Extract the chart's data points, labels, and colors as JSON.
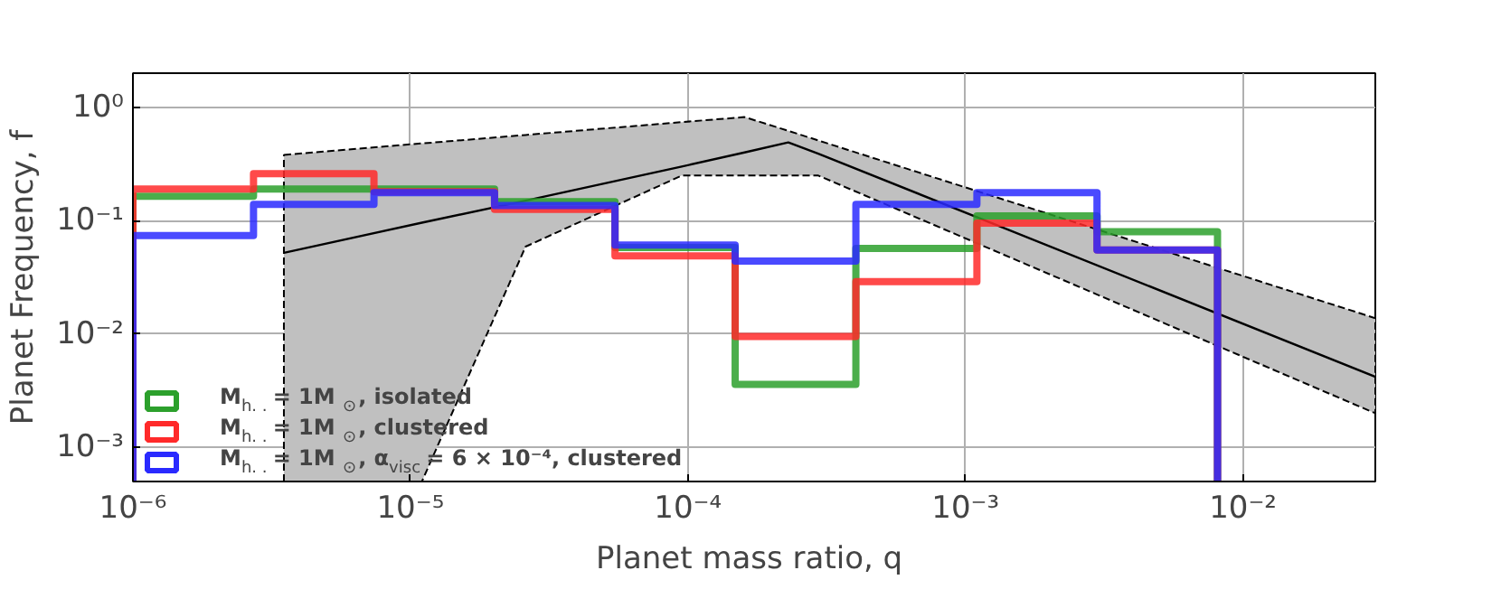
{
  "chart_data": {
    "type": "histogram",
    "xlabel": "Planet mass  ratio, q",
    "ylabel": "Planet Frequency, f",
    "log": "xy",
    "grid": true,
    "legend": "bottom left",
    "bins": [
      1e-06,
      2.72e-06,
      7.39e-06,
      2.01e-05,
      5.46e-05,
      0.000148,
      0.000403,
      0.0011,
      0.00298,
      0.0081
    ],
    "xlim": [
      1e-06,
      0.03
    ],
    "ylim": [
      0.0005,
      2
    ],
    "xticks": [
      {
        "value": 1e-06,
        "label": "10⁻⁶"
      },
      {
        "value": 1e-05,
        "label": "10⁻⁵"
      },
      {
        "value": 0.0001,
        "label": "10⁻⁴"
      },
      {
        "value": 0.001,
        "label": "10⁻³"
      },
      {
        "value": 0.01,
        "label": "10⁻²"
      }
    ],
    "yticks": [
      {
        "value": 0.001,
        "label": "10⁻³"
      },
      {
        "value": 0.01,
        "label": "10⁻²"
      },
      {
        "value": 0.1,
        "label": "10⁻¹"
      },
      {
        "value": 1,
        "label": "10⁰"
      }
    ],
    "series": [
      {
        "type": "line",
        "color": "#000000",
        "x": [
          3.5e-06,
          1.1e-05,
          2.6e-05,
          9.5e-05,
          0.00016,
          0.00023,
          0.000295,
          0.03
        ],
        "values": [
          0.052,
          0.096,
          0.15,
          0.3,
          0.4,
          0.49,
          0.39,
          0.0042
        ],
        "lower": [
          0.0005,
          0.0005,
          0.059,
          0.25,
          0.25,
          0.25,
          0.25,
          0.002
        ],
        "upper": [
          0.38,
          0.48,
          0.57,
          0.74,
          0.82,
          0.62,
          0.51,
          0.0138
        ]
      },
      {
        "name": "M$_{h. .}$ = 1M$_{⊙}$, isolated",
        "color": "#2ca02c",
        "values": [
          0.164,
          0.19,
          0.19,
          0.147,
          0.058,
          0.0036,
          0.057,
          0.11,
          0.08
        ]
      },
      {
        "name": "M$_{h. .}$ = 1M$_{⊙}$, clustered",
        "color": "#ff2a2a",
        "values": [
          0.19,
          0.26,
          0.18,
          0.126,
          0.049,
          0.0095,
          0.029,
          0.095,
          0.055
        ]
      },
      {
        "name": "M$_{h. .}$ = 1M$_{⊙}$, α$_{visc}$ = 6 × 10⁻⁴, clustered",
        "color": "#2a2aff",
        "values": [
          0.074,
          0.139,
          0.177,
          0.136,
          0.061,
          0.044,
          0.139,
          0.177,
          0.055
        ]
      }
    ]
  }
}
